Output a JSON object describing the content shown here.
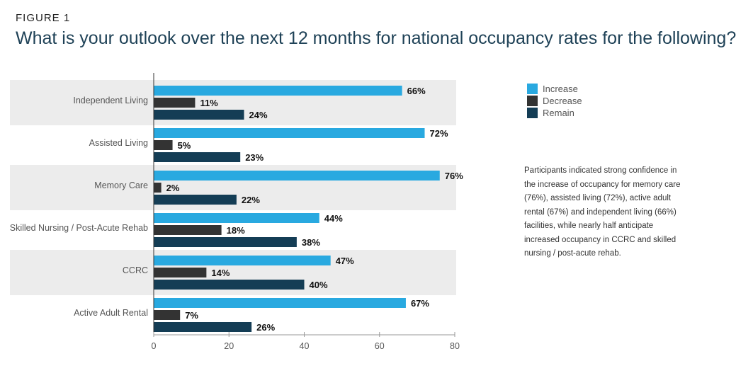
{
  "figure_label": "FIGURE 1",
  "chart_data": {
    "type": "bar",
    "orientation": "horizontal",
    "title": "What is your outlook over the next 12 months for national occupancy rates for the following?",
    "categories": [
      "Independent Living",
      "Assisted Living",
      "Memory Care",
      "Skilled Nursing / Post-Acute Rehab",
      "CCRC",
      "Active Adult Rental"
    ],
    "series": [
      {
        "name": "Increase",
        "color": "#29a9e0",
        "values": [
          66,
          72,
          76,
          44,
          47,
          67
        ]
      },
      {
        "name": "Decrease",
        "color": "#333333",
        "values": [
          11,
          5,
          2,
          18,
          14,
          7
        ]
      },
      {
        "name": "Remain",
        "color": "#143d55",
        "values": [
          24,
          23,
          22,
          38,
          40,
          26
        ]
      }
    ],
    "value_suffix": "%",
    "xlim": [
      0,
      80
    ],
    "xticks": [
      0,
      20,
      40,
      60,
      80
    ],
    "legend": "right",
    "grid": false,
    "band_color": "#ececec"
  },
  "note": "Participants indicated strong confidence in the increase of occupancy for memory care (76%), assisted living (72%), active adult rental (67%) and independent living (66%) facilities, while nearly half anticipate increased occupancy in CCRC and skilled nursing / post-acute rehab."
}
